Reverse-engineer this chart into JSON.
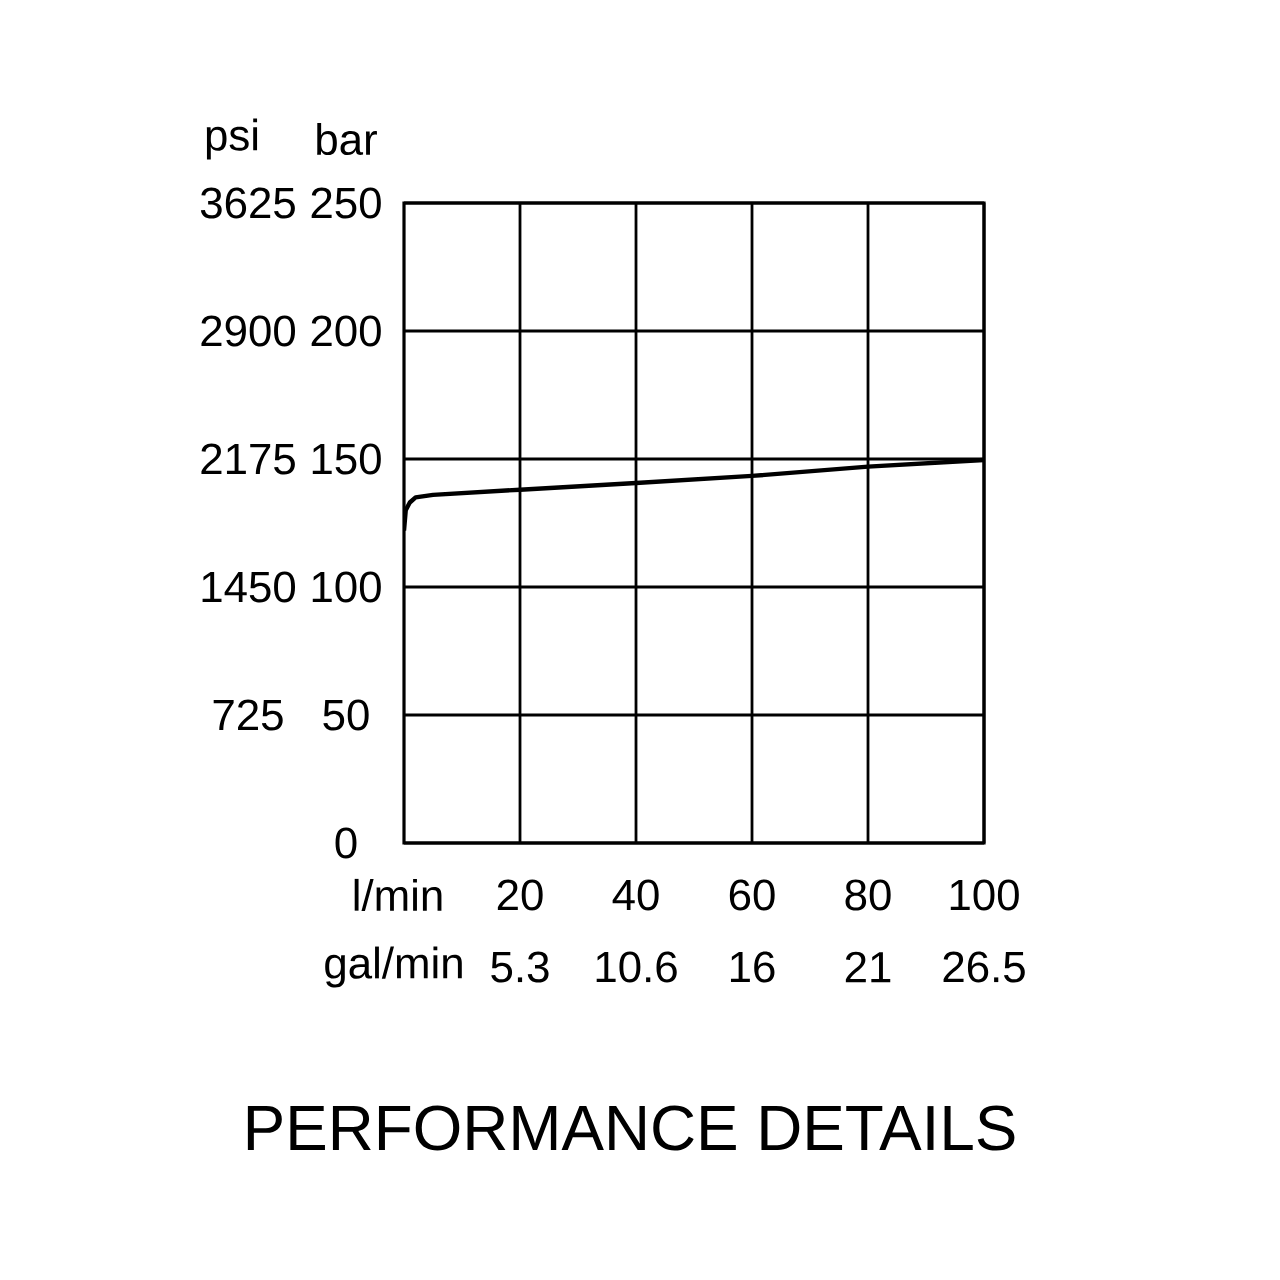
{
  "chart_data": {
    "type": "line",
    "title": "PERFORMANCE DETAILS",
    "xlabel": "l/min",
    "x2label": "gal/min",
    "ylabel": "bar",
    "y2label": "psi",
    "xlim": [
      0,
      100
    ],
    "xticks": [
      20,
      40,
      60,
      80,
      100
    ],
    "x2lim": [
      0,
      26.5
    ],
    "x2ticks": [
      5.3,
      10.6,
      {
        "value": 15.9,
        "label": "16"
      },
      {
        "value": 21.2,
        "label": "21"
      },
      26.5
    ],
    "ylim": [
      0,
      250
    ],
    "yticks": [
      0,
      50,
      100,
      150,
      200,
      250
    ],
    "y2lim": [
      0,
      3625
    ],
    "y2ticks": [
      725,
      1450,
      2175,
      2900,
      3625
    ],
    "grid": true,
    "line_style": "solid",
    "series": [
      {
        "color": "#000000",
        "x": [
          0,
          0.3,
          1,
          2,
          5,
          20,
          40,
          60,
          80,
          100
        ],
        "values": [
          122,
          130,
          133,
          135,
          136,
          138,
          140.6,
          143.4,
          147,
          149.6
        ]
      }
    ]
  }
}
